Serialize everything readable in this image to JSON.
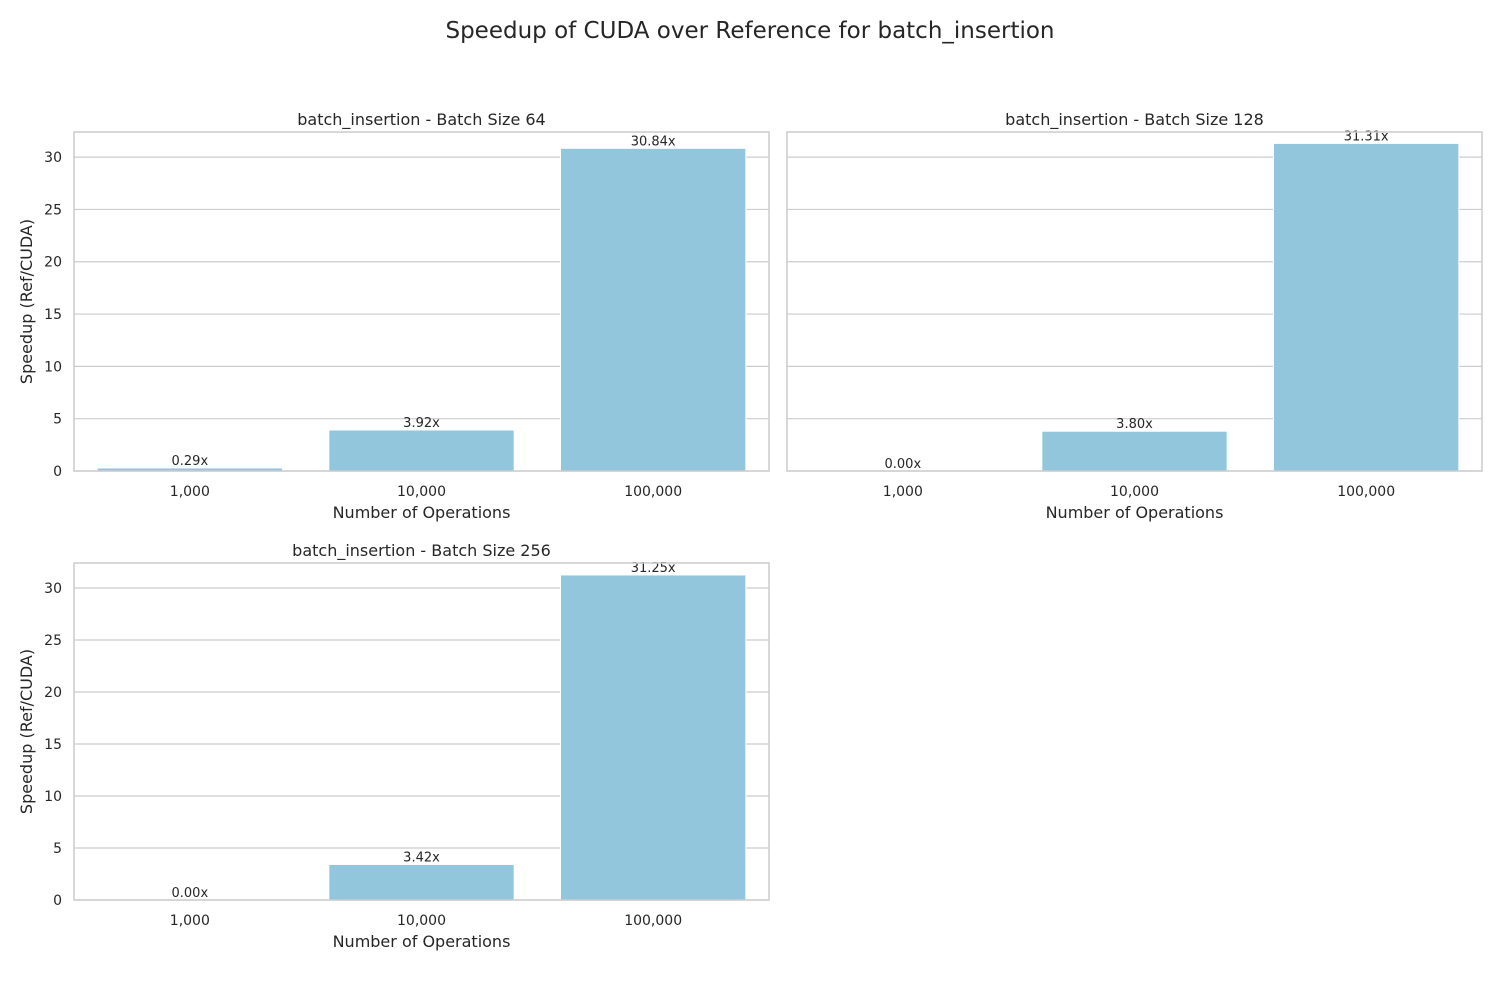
{
  "figure_title": "Speedup of CUDA over Reference for batch_insertion",
  "colors": {
    "bar": "#92C6DC",
    "bar_edge": "#ffffff",
    "grid": "#cccccc",
    "spine": "#cccccc",
    "text": "#262626"
  },
  "chart_data": [
    {
      "type": "bar",
      "title": "batch_insertion - Batch Size 64",
      "xlabel": "Number of Operations",
      "ylabel": "Speedup (Ref/CUDA)",
      "categories": [
        "1,000",
        "10,000",
        "100,000"
      ],
      "values": [
        0.29,
        3.92,
        30.84
      ],
      "data_labels": [
        "0.29x",
        "3.92x",
        "30.84x"
      ],
      "ylim": [
        0,
        32.4
      ],
      "yticks": [
        0,
        5,
        10,
        15,
        20,
        25,
        30
      ],
      "grid": true,
      "show_ytick_labels": true
    },
    {
      "type": "bar",
      "title": "batch_insertion - Batch Size 128",
      "xlabel": "Number of Operations",
      "ylabel": "",
      "categories": [
        "1,000",
        "10,000",
        "100,000"
      ],
      "values": [
        0.0,
        3.8,
        31.31
      ],
      "data_labels": [
        "0.00x",
        "3.80x",
        "31.31x"
      ],
      "ylim": [
        0,
        32.4
      ],
      "yticks": [
        0,
        5,
        10,
        15,
        20,
        25,
        30
      ],
      "grid": true,
      "show_ytick_labels": false
    },
    {
      "type": "bar",
      "title": "batch_insertion - Batch Size 256",
      "xlabel": "Number of Operations",
      "ylabel": "Speedup (Ref/CUDA)",
      "categories": [
        "1,000",
        "10,000",
        "100,000"
      ],
      "values": [
        0.0,
        3.42,
        31.25
      ],
      "data_labels": [
        "0.00x",
        "3.42x",
        "31.25x"
      ],
      "ylim": [
        0,
        32.4
      ],
      "yticks": [
        0,
        5,
        10,
        15,
        20,
        25,
        30
      ],
      "grid": true,
      "show_ytick_labels": true
    }
  ]
}
